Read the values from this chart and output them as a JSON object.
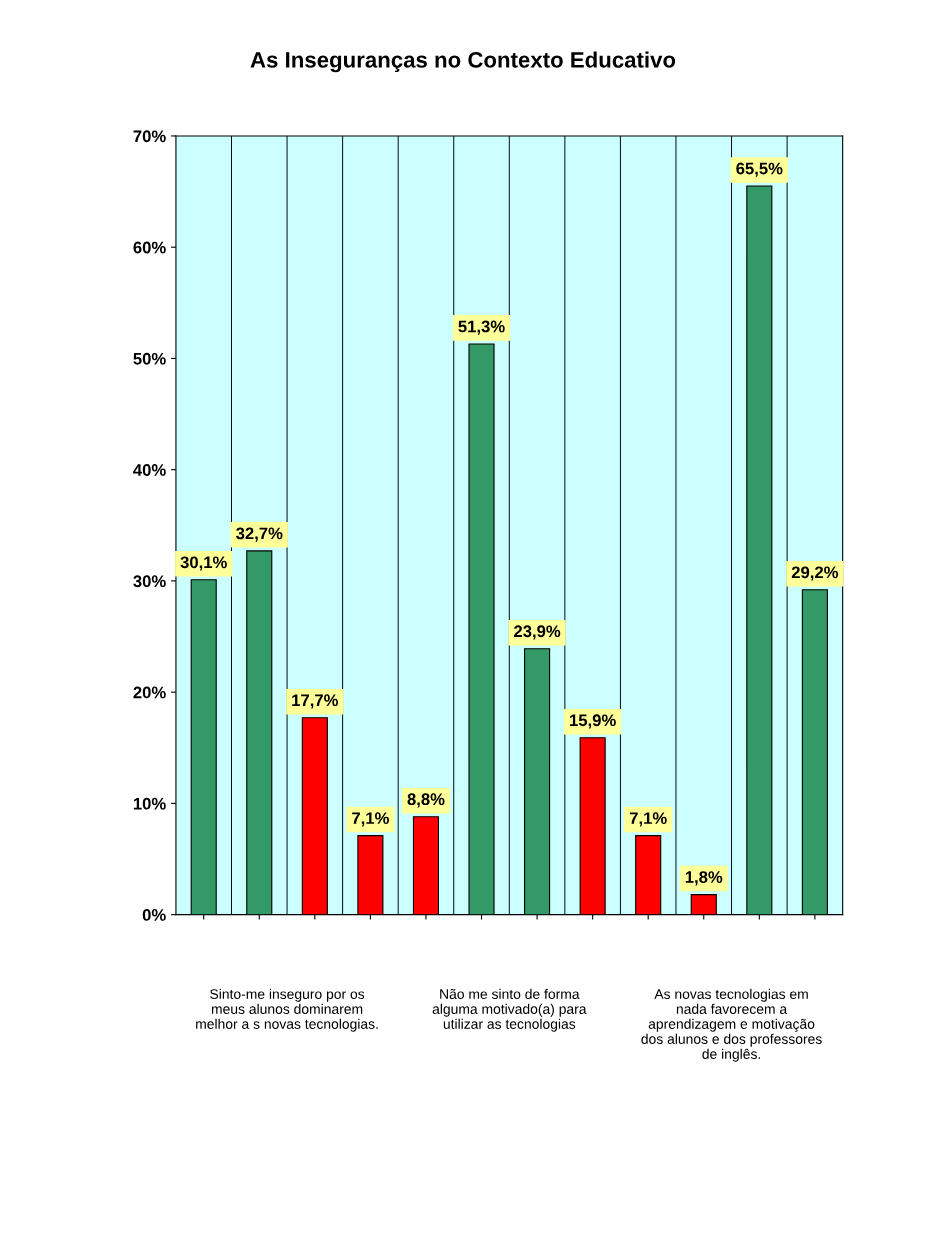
{
  "chart_data": {
    "type": "bar",
    "title": "As Inseguranças no Contexto Educativo",
    "categories": [
      null,
      null,
      null,
      null,
      null,
      null,
      null,
      null,
      null,
      null,
      null,
      null
    ],
    "values": [
      30.1,
      32.7,
      17.7,
      7.1,
      8.8,
      51.3,
      23.9,
      15.9,
      7.1,
      1.8,
      65.5,
      29.2
    ],
    "colors": [
      "#339966",
      "#339966",
      "#ff0000",
      "#ff0000",
      "#ff0000",
      "#339966",
      "#339966",
      "#ff0000",
      "#ff0000",
      "#ff0000",
      "#339966",
      "#339966"
    ],
    "value_labels": [
      "30,1%",
      "32,7%",
      "17,7%",
      "7,1%",
      "8,8%",
      "51,3%",
      "23,9%",
      "15,9%",
      "7,1%",
      "1,8%",
      "65,5%",
      "29,2%"
    ],
    "ylim": [
      0,
      70
    ],
    "yticks": [
      {
        "value": 0,
        "label": "0%"
      },
      {
        "value": 10,
        "label": "10%"
      },
      {
        "value": 20,
        "label": "20%"
      },
      {
        "value": 30,
        "label": "30%"
      },
      {
        "value": 40,
        "label": "40%"
      },
      {
        "value": 50,
        "label": "50%"
      },
      {
        "value": 60,
        "label": "60%"
      },
      {
        "value": 70,
        "label": "70%"
      }
    ],
    "annotations": [
      "Sinto-me inseguro por os meus alunos dominarem melhor a s novas tecnologias.",
      "Não me sinto de forma alguma motivado(a) para utilizar as tecnologias",
      "As novas tecnologias em nada favorecem a aprendizagem e motivação dos alunos e dos professores de inglês."
    ],
    "grid": false
  }
}
